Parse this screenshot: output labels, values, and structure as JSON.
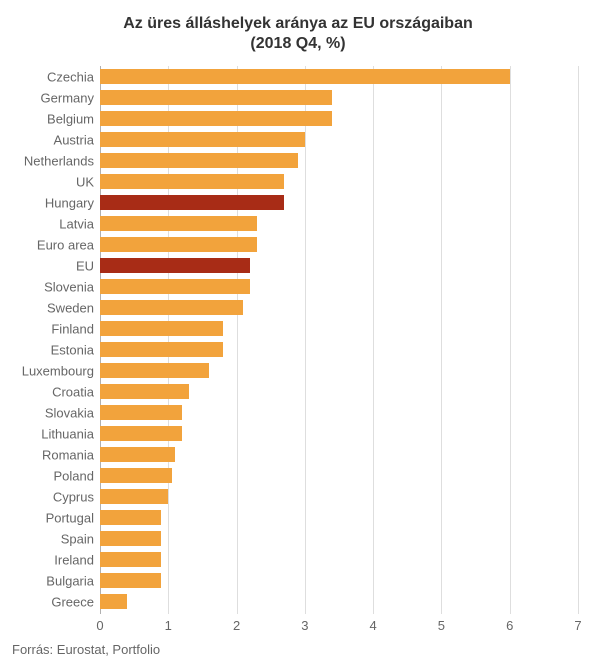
{
  "chart": {
    "type": "bar-horizontal",
    "title_line1": "Az üres álláshelyek aránya az EU országaiban",
    "title_line2": "(2018 Q4, %)",
    "title_fontsize": 16,
    "title_color": "#333333",
    "background_color": "#ffffff",
    "grid_color": "#dedede",
    "axis_color": "#b0b0b0",
    "ylabel_fontsize": 13,
    "ylabel_color": "#666666",
    "xtick_fontsize": 13,
    "xtick_color": "#666666",
    "bar_default_color": "#f2a33c",
    "bar_highlight_color": "#a82c16",
    "bar_row_height": 21,
    "xlim": [
      0,
      7
    ],
    "xticks": [
      0,
      1,
      2,
      3,
      4,
      5,
      6,
      7
    ],
    "rows": [
      {
        "label": "Czechia",
        "value": 6.0,
        "highlight": false
      },
      {
        "label": "Germany",
        "value": 3.4,
        "highlight": false
      },
      {
        "label": "Belgium",
        "value": 3.4,
        "highlight": false
      },
      {
        "label": "Austria",
        "value": 3.0,
        "highlight": false
      },
      {
        "label": "Netherlands",
        "value": 2.9,
        "highlight": false
      },
      {
        "label": "UK",
        "value": 2.7,
        "highlight": false
      },
      {
        "label": "Hungary",
        "value": 2.7,
        "highlight": true
      },
      {
        "label": "Latvia",
        "value": 2.3,
        "highlight": false
      },
      {
        "label": "Euro area",
        "value": 2.3,
        "highlight": false
      },
      {
        "label": "EU",
        "value": 2.2,
        "highlight": true
      },
      {
        "label": "Slovenia",
        "value": 2.2,
        "highlight": false
      },
      {
        "label": "Sweden",
        "value": 2.1,
        "highlight": false
      },
      {
        "label": "Finland",
        "value": 1.8,
        "highlight": false
      },
      {
        "label": "Estonia",
        "value": 1.8,
        "highlight": false
      },
      {
        "label": "Luxembourg",
        "value": 1.6,
        "highlight": false
      },
      {
        "label": "Croatia",
        "value": 1.3,
        "highlight": false
      },
      {
        "label": "Slovakia",
        "value": 1.2,
        "highlight": false
      },
      {
        "label": "Lithuania",
        "value": 1.2,
        "highlight": false
      },
      {
        "label": "Romania",
        "value": 1.1,
        "highlight": false
      },
      {
        "label": "Poland",
        "value": 1.05,
        "highlight": false
      },
      {
        "label": "Cyprus",
        "value": 1.0,
        "highlight": false
      },
      {
        "label": "Portugal",
        "value": 0.9,
        "highlight": false
      },
      {
        "label": "Spain",
        "value": 0.9,
        "highlight": false
      },
      {
        "label": "Ireland",
        "value": 0.9,
        "highlight": false
      },
      {
        "label": "Bulgaria",
        "value": 0.9,
        "highlight": false
      },
      {
        "label": "Greece",
        "value": 0.4,
        "highlight": false
      }
    ],
    "source_label": "Forrás: Eurostat, Portfolio",
    "source_fontsize": 13,
    "source_color": "#666666"
  }
}
